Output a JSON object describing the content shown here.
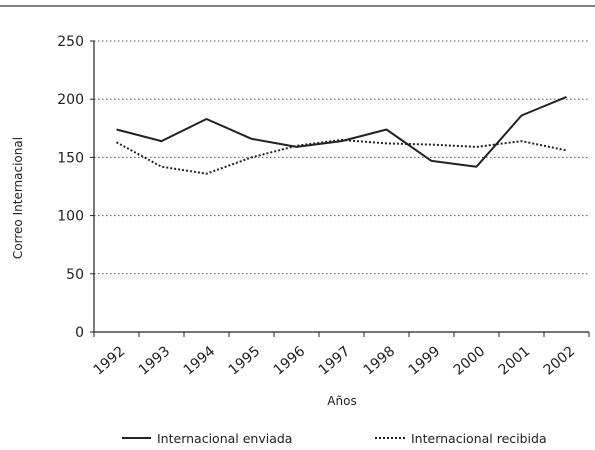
{
  "chart_data": {
    "type": "line",
    "categories": [
      "1992",
      "1993",
      "1994",
      "1995",
      "1996",
      "1997",
      "1998",
      "1999",
      "2000",
      "2001",
      "2002"
    ],
    "series": [
      {
        "name": "Internacional enviada",
        "values": [
          174,
          164,
          183,
          166,
          159,
          164,
          174,
          147,
          142,
          186,
          202
        ],
        "style": "solid",
        "color": "#222222"
      },
      {
        "name": "Internacional recibida",
        "values": [
          163,
          142,
          136,
          150,
          160,
          165,
          162,
          161,
          159,
          164,
          156
        ],
        "style": "dotted",
        "color": "#222222"
      }
    ],
    "yticks": [
      "0",
      "50",
      "100",
      "150",
      "200",
      "250"
    ],
    "ylim": [
      0,
      250
    ],
    "xlabel": "Años",
    "ylabel": "Correo Internacional",
    "grid": "horizontal dotted",
    "legend_position": "bottom"
  }
}
